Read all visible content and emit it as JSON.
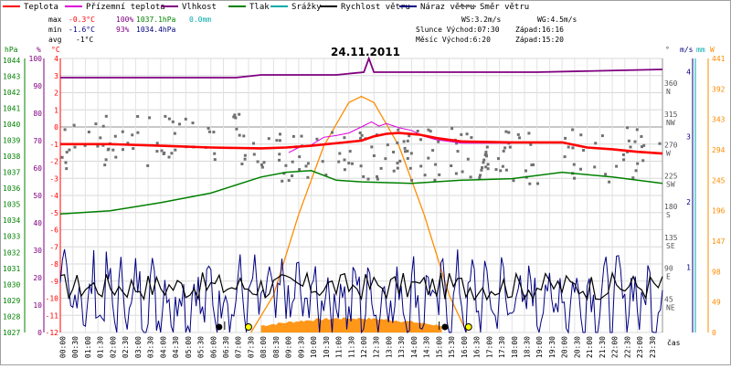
{
  "chart_data": {
    "type": "line",
    "title": "24.11.2011",
    "legend": [
      {
        "name": "Teplota",
        "color": "#ff0000"
      },
      {
        "name": "Přízemní teplota",
        "color": "#dd00dd"
      },
      {
        "name": "Vlhkost",
        "color": "#800080"
      },
      {
        "name": "Tlak",
        "color": "#008000"
      },
      {
        "name": "Srážky",
        "color": "#00aaaa"
      },
      {
        "name": "Rychlost větru",
        "color": "#000000"
      },
      {
        "name": "Náraz větru",
        "color": "#000080"
      },
      {
        "name": "Směr větru",
        "color": "#808080"
      }
    ],
    "stats": {
      "max_label": "max",
      "min_label": "min",
      "avg_label": "avg",
      "max_temp": "-0.3°C",
      "max_hum": "100%",
      "max_press": "1037.1hPa",
      "max_rain": "0.0mm",
      "min_temp": "-1.6°C",
      "min_hum": "93%",
      "min_press": "1034.4hPa",
      "avg_temp": "-1°C"
    },
    "info": {
      "ws": "WS:3.2m/s",
      "wg": "WG:4.5m/s",
      "sun_rise": "Slunce Východ:07:30",
      "sun_set": "Západ:16:16",
      "moon_rise": "Měsíc  Východ:6:20",
      "moon_set": "Západ:15:20"
    },
    "axes": {
      "hpa_label": "hPa",
      "hum_label": "%",
      "temp_label": "°C",
      "dir_label": "°",
      "ms_label": "m/s",
      "mm_label": "mm",
      "w_label": "W",
      "time_label": "čas",
      "hpa_ticks": [
        "1044",
        "1043",
        "1042",
        "1041",
        "1040",
        "1039",
        "1038",
        "1037",
        "1036",
        "1035",
        "1034",
        "1033",
        "1032",
        "1031",
        "1030",
        "1029",
        "1028",
        "1027"
      ],
      "hum_ticks": [
        "100",
        "90",
        "80",
        "70",
        "60",
        "50",
        "40",
        "30",
        "20",
        "10",
        "0"
      ],
      "temp_ticks": [
        "4",
        "3",
        "2",
        "1",
        "0",
        "-1",
        "-2",
        "-3",
        "-4",
        "-5",
        "-6",
        "-7",
        "-8",
        "-9",
        "-10",
        "-11",
        "-12"
      ],
      "dir_ticks": [
        "360 N",
        "315 NW",
        "270 W",
        "225 SW",
        "180 S",
        "135 SE",
        "90 E",
        "45 NE"
      ],
      "ms_ticks": [
        "1",
        "2",
        "3",
        "4"
      ],
      "w_ticks": [
        "441",
        "392",
        "343",
        "294",
        "245",
        "196",
        "147",
        "98",
        "49",
        "0"
      ],
      "temp_range": [
        -12,
        4
      ],
      "time_ticks": [
        "00:00",
        "00:30",
        "01:00",
        "01:30",
        "02:00",
        "02:30",
        "03:00",
        "03:30",
        "04:00",
        "04:30",
        "05:00",
        "05:30",
        "06:00",
        "06:30",
        "07:00",
        "07:30",
        "08:00",
        "08:30",
        "09:00",
        "09:30",
        "10:00",
        "10:30",
        "11:00",
        "11:30",
        "12:00",
        "12:30",
        "13:00",
        "13:30",
        "14:00",
        "14:30",
        "15:00",
        "15:30",
        "16:00",
        "16:30",
        "17:00",
        "17:30",
        "18:00",
        "18:30",
        "19:00",
        "19:30",
        "20:00",
        "20:30",
        "21:00",
        "21:30",
        "22:00",
        "22:30",
        "23:00",
        "23:30"
      ]
    },
    "series": {
      "temperature_c": [
        [
          0,
          -1.0
        ],
        [
          2,
          -1.0
        ],
        [
          4,
          -1.1
        ],
        [
          6,
          -1.2
        ],
        [
          8,
          -1.25
        ],
        [
          9,
          -1.2
        ],
        [
          10,
          -1.1
        ],
        [
          12,
          -0.8
        ],
        [
          12.5,
          -0.55
        ],
        [
          13,
          -0.4
        ],
        [
          13.5,
          -0.35
        ],
        [
          14.3,
          -0.45
        ],
        [
          15,
          -0.65
        ],
        [
          16,
          -0.85
        ],
        [
          18,
          -0.9
        ],
        [
          20,
          -0.9
        ],
        [
          21,
          -1.2
        ],
        [
          22,
          -1.3
        ],
        [
          23,
          -1.45
        ],
        [
          24,
          -1.55
        ]
      ],
      "ground_temperature_c": [
        [
          9.1,
          -1.5
        ],
        [
          9.5,
          -1.2
        ],
        [
          10,
          -1.05
        ],
        [
          10.5,
          -0.6
        ],
        [
          11,
          -0.5
        ],
        [
          11.5,
          -0.35
        ],
        [
          12,
          0.0
        ],
        [
          12.4,
          0.3
        ],
        [
          12.7,
          0.05
        ],
        [
          13,
          0.2
        ],
        [
          13.5,
          -0.05
        ],
        [
          14,
          -0.2
        ],
        [
          14.5,
          -0.55
        ],
        [
          15,
          -0.75
        ],
        [
          15.5,
          -0.85
        ],
        [
          16,
          -0.95
        ],
        [
          18,
          -0.95
        ]
      ],
      "humidity_pct": [
        [
          0,
          93
        ],
        [
          7,
          93
        ],
        [
          8,
          94
        ],
        [
          11,
          94
        ],
        [
          12.1,
          95
        ],
        [
          12.3,
          100
        ],
        [
          12.5,
          95
        ],
        [
          15,
          95
        ],
        [
          19,
          95
        ],
        [
          24,
          96
        ]
      ],
      "pressure_hpa": [
        [
          0,
          1034.4
        ],
        [
          2,
          1034.6
        ],
        [
          4,
          1035.1
        ],
        [
          6,
          1035.7
        ],
        [
          8,
          1036.7
        ],
        [
          9,
          1037.0
        ],
        [
          10,
          1037.1
        ],
        [
          11,
          1036.5
        ],
        [
          12,
          1036.4
        ],
        [
          14,
          1036.3
        ],
        [
          16,
          1036.5
        ],
        [
          18,
          1036.6
        ],
        [
          20,
          1037.0
        ],
        [
          22,
          1036.7
        ],
        [
          24,
          1036.3
        ]
      ],
      "solar_w": [
        [
          7.6,
          0
        ],
        [
          8.5,
          60
        ],
        [
          9.5,
          190
        ],
        [
          10.5,
          300
        ],
        [
          11.5,
          370
        ],
        [
          12.0,
          380
        ],
        [
          12.5,
          370
        ],
        [
          13.5,
          300
        ],
        [
          14.5,
          190
        ],
        [
          15.5,
          60
        ],
        [
          16.2,
          0
        ]
      ]
    },
    "colors": {
      "accent": "#ff0000",
      "grid": "#c0c0c0"
    }
  }
}
